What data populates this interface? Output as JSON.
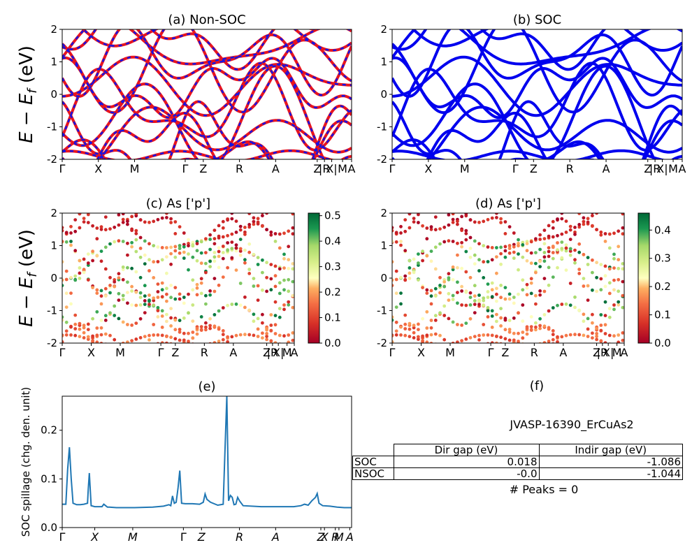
{
  "chart_data": [
    {
      "type": "line",
      "panel": "a",
      "title": "(a) Non-SOC",
      "ylabel": "E − E_f (eV)",
      "ylim": [
        -2,
        2
      ],
      "yticks": [
        -2,
        -1,
        0,
        1,
        2
      ],
      "xticks": [
        {
          "x": 0,
          "label": "Γ"
        },
        {
          "x": 1.0,
          "label": "X"
        },
        {
          "x": 2.0,
          "label": "M"
        },
        {
          "x": 3.4,
          "label": "Γ"
        },
        {
          "x": 3.9,
          "label": "Z"
        },
        {
          "x": 4.9,
          "label": "R"
        },
        {
          "x": 5.9,
          "label": "A"
        },
        {
          "x": 7.05,
          "label": "Z"
        },
        {
          "x": 7.25,
          "label": "|R"
        },
        {
          "x": 7.45,
          "label": "X|"
        },
        {
          "x": 7.75,
          "label": "M"
        },
        {
          "x": 8.0,
          "label": "A"
        }
      ],
      "xlim": [
        0,
        8.0
      ],
      "series": [
        {
          "color": "#e8141e",
          "style": "solid"
        },
        {
          "color": "#1414e6",
          "style": "dashed"
        }
      ]
    },
    {
      "type": "line",
      "panel": "b",
      "title": "(b) SOC",
      "ylim": [
        -2,
        2
      ],
      "yticks": [
        -2,
        -1,
        0,
        1,
        2
      ],
      "xticks": [
        {
          "x": 0,
          "label": "Γ"
        },
        {
          "x": 1.0,
          "label": "X"
        },
        {
          "x": 2.0,
          "label": "M"
        },
        {
          "x": 3.4,
          "label": "Γ"
        },
        {
          "x": 3.9,
          "label": "Z"
        },
        {
          "x": 4.9,
          "label": "R"
        },
        {
          "x": 5.9,
          "label": "A"
        },
        {
          "x": 7.05,
          "label": "Z"
        },
        {
          "x": 7.25,
          "label": "|R"
        },
        {
          "x": 7.45,
          "label": "X|"
        },
        {
          "x": 7.75,
          "label": "M"
        },
        {
          "x": 8.0,
          "label": "A"
        }
      ],
      "xlim": [
        0,
        8.0
      ],
      "series": [
        {
          "color": "#0000ee",
          "style": "solid"
        }
      ]
    },
    {
      "type": "scatter",
      "panel": "c",
      "title": "(c)  As ['p']",
      "ylabel": "E − E_f (eV)",
      "ylim": [
        -2,
        2
      ],
      "yticks": [
        -2,
        -1,
        0,
        1,
        2
      ],
      "colorbar": {
        "min": 0.0,
        "max": 0.51,
        "ticks": [
          "0.0",
          "0.1",
          "0.2",
          "0.3",
          "0.4",
          "0.5"
        ],
        "cmap": "RdYlGn"
      },
      "xticks": [
        {
          "x": 0,
          "label": "Γ"
        },
        {
          "x": 1.0,
          "label": "X"
        },
        {
          "x": 2.0,
          "label": "M"
        },
        {
          "x": 3.4,
          "label": "Γ"
        },
        {
          "x": 3.9,
          "label": "Z"
        },
        {
          "x": 4.9,
          "label": "R"
        },
        {
          "x": 5.9,
          "label": "A"
        },
        {
          "x": 7.05,
          "label": "Z"
        },
        {
          "x": 7.25,
          "label": "|R"
        },
        {
          "x": 7.45,
          "label": "X|"
        },
        {
          "x": 7.75,
          "label": "M"
        },
        {
          "x": 8.0,
          "label": "A"
        }
      ],
      "xlim": [
        0,
        8.0
      ]
    },
    {
      "type": "scatter",
      "panel": "d",
      "title": "(d) As ['p']",
      "ylim": [
        -2,
        2
      ],
      "yticks": [
        -2,
        -1,
        0,
        1,
        2
      ],
      "colorbar": {
        "min": 0.0,
        "max": 0.46,
        "ticks": [
          "0.0",
          "0.1",
          "0.2",
          "0.3",
          "0.4"
        ],
        "cmap": "RdYlGn"
      },
      "xticks": [
        {
          "x": 0,
          "label": "Γ"
        },
        {
          "x": 1.0,
          "label": "X"
        },
        {
          "x": 2.0,
          "label": "M"
        },
        {
          "x": 3.4,
          "label": "Γ"
        },
        {
          "x": 3.9,
          "label": "Z"
        },
        {
          "x": 4.9,
          "label": "R"
        },
        {
          "x": 5.9,
          "label": "A"
        },
        {
          "x": 7.05,
          "label": "Z"
        },
        {
          "x": 7.25,
          "label": "|R"
        },
        {
          "x": 7.45,
          "label": "X|"
        },
        {
          "x": 7.75,
          "label": "M"
        },
        {
          "x": 8.0,
          "label": "A"
        }
      ],
      "xlim": [
        0,
        8.0
      ]
    },
    {
      "type": "line",
      "panel": "e",
      "title": "(e)",
      "ylabel": "SOC spillage (chg. den. unit)",
      "ylim": [
        0,
        0.27
      ],
      "yticks": [
        0.0,
        0.1,
        0.2
      ],
      "xlim": [
        0,
        8.0
      ],
      "xticks": [
        {
          "x": 0,
          "label": "Γ"
        },
        {
          "x": 0.9,
          "label": "X"
        },
        {
          "x": 1.95,
          "label": "M"
        },
        {
          "x": 3.35,
          "label": "Γ"
        },
        {
          "x": 3.85,
          "label": "Z"
        },
        {
          "x": 4.9,
          "label": "R"
        },
        {
          "x": 5.9,
          "label": "A"
        },
        {
          "x": 7.15,
          "label": "Z"
        },
        {
          "x": 7.25,
          "label": "X"
        },
        {
          "x": 7.55,
          "label": "R"
        },
        {
          "x": 7.65,
          "label": "M"
        },
        {
          "x": 7.95,
          "label": "A"
        }
      ],
      "series": [
        {
          "color": "#1f77b4",
          "x": [
            0,
            0.1,
            0.15,
            0.2,
            0.25,
            0.3,
            0.4,
            0.5,
            0.6,
            0.7,
            0.72,
            0.75,
            0.8,
            0.9,
            1.0,
            1.1,
            1.15,
            1.2,
            1.25,
            1.3,
            1.5,
            2.0,
            2.5,
            2.8,
            2.95,
            3.0,
            3.05,
            3.1,
            3.15,
            3.2,
            3.25,
            3.3,
            3.4,
            3.6,
            3.8,
            3.9,
            3.95,
            4.0,
            4.1,
            4.3,
            4.45,
            4.5,
            4.55,
            4.6,
            4.65,
            4.7,
            4.75,
            4.8,
            4.85,
            4.9,
            5.0,
            5.5,
            6.0,
            6.4,
            6.6,
            6.7,
            6.8,
            6.9,
            7.0,
            7.05,
            7.1,
            7.2,
            7.4,
            7.6,
            7.8,
            8.0
          ],
          "y": [
            0.048,
            0.048,
            0.12,
            0.165,
            0.1,
            0.05,
            0.047,
            0.047,
            0.048,
            0.05,
            0.08,
            0.112,
            0.045,
            0.043,
            0.043,
            0.043,
            0.048,
            0.045,
            0.042,
            0.042,
            0.041,
            0.041,
            0.042,
            0.044,
            0.047,
            0.045,
            0.065,
            0.05,
            0.052,
            0.08,
            0.117,
            0.05,
            0.049,
            0.049,
            0.048,
            0.052,
            0.069,
            0.058,
            0.052,
            0.046,
            0.048,
            0.16,
            0.27,
            0.055,
            0.066,
            0.062,
            0.047,
            0.048,
            0.062,
            0.055,
            0.045,
            0.043,
            0.043,
            0.043,
            0.045,
            0.048,
            0.046,
            0.055,
            0.062,
            0.07,
            0.05,
            0.045,
            0.044,
            0.042,
            0.041,
            0.041
          ]
        }
      ]
    }
  ],
  "panel_f": {
    "title": "(f)",
    "material": "JVASP-16390_ErCuAs2",
    "table": {
      "headers": [
        "",
        "Dir gap (eV)",
        "Indir gap (eV)"
      ],
      "rows": [
        {
          "label": "SOC",
          "dir": "0.018",
          "indir": "-1.086"
        },
        {
          "label": "NSOC",
          "dir": "-0.0",
          "indir": "-1.044"
        }
      ]
    },
    "peaks_text": "# Peaks = 0"
  },
  "labels": {
    "ylabel_a": "E − E",
    "ylabel_sub": "f",
    "ylabel_unit": " (eV)"
  }
}
